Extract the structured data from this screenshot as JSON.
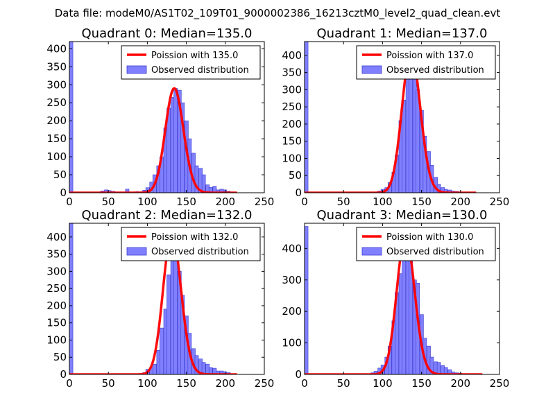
{
  "figure_title": "Data file: modeM0/AS1T02_109T01_9000002386_16213cztM0_level2_quad_clean.evt",
  "colors": {
    "observed": "#8080ff",
    "observed_edge": "#3a3ad0",
    "poisson": "#ff0000",
    "axes": "#000000"
  },
  "legend_labels": {
    "poisson_prefix": "Poission with",
    "observed": "Observed distribution"
  },
  "chart_data": [
    {
      "type": "bar",
      "title": "Quadrant 0: Median=135.0",
      "median": 135.0,
      "poisson_label": "Poission with 135.0",
      "xlim": [
        0,
        250
      ],
      "ylim": [
        0,
        420
      ],
      "xticks": [
        0,
        50,
        100,
        150,
        200,
        250
      ],
      "yticks": [
        0,
        50,
        100,
        150,
        200,
        250,
        300,
        350,
        400
      ],
      "bin_width": 4.5,
      "bins": [
        [
          0,
          420
        ],
        [
          40,
          5
        ],
        [
          45,
          8
        ],
        [
          49,
          6
        ],
        [
          54,
          4
        ],
        [
          58,
          2
        ],
        [
          72,
          10
        ],
        [
          85,
          3
        ],
        [
          94,
          7
        ],
        [
          98,
          14
        ],
        [
          103,
          30
        ],
        [
          107,
          50
        ],
        [
          112,
          75
        ],
        [
          116,
          100
        ],
        [
          121,
          180
        ],
        [
          125,
          235
        ],
        [
          130,
          265
        ],
        [
          134,
          290
        ],
        [
          139,
          285
        ],
        [
          143,
          250
        ],
        [
          148,
          200
        ],
        [
          152,
          150
        ],
        [
          157,
          110
        ],
        [
          161,
          75
        ],
        [
          166,
          68
        ],
        [
          170,
          50
        ],
        [
          175,
          22
        ],
        [
          179,
          15
        ],
        [
          184,
          18
        ],
        [
          188,
          8
        ],
        [
          193,
          10
        ],
        [
          197,
          8
        ],
        [
          202,
          4
        ]
      ],
      "poisson_range": [
        0,
        215
      ]
    },
    {
      "type": "bar",
      "title": "Quadrant 1: Median=137.0",
      "median": 137.0,
      "poisson_label": "Poission with 137.0",
      "xlim": [
        0,
        250
      ],
      "ylim": [
        0,
        440
      ],
      "xticks": [
        0,
        50,
        100,
        150,
        200,
        250
      ],
      "yticks": [
        0,
        50,
        100,
        150,
        200,
        250,
        300,
        350,
        400
      ],
      "bin_width": 4.5,
      "bins": [
        [
          0,
          440
        ],
        [
          94,
          5
        ],
        [
          98,
          10
        ],
        [
          103,
          15
        ],
        [
          107,
          30
        ],
        [
          112,
          60
        ],
        [
          116,
          110
        ],
        [
          121,
          210
        ],
        [
          125,
          270
        ],
        [
          130,
          340
        ],
        [
          134,
          410
        ],
        [
          139,
          360
        ],
        [
          143,
          300
        ],
        [
          148,
          240
        ],
        [
          152,
          165
        ],
        [
          157,
          120
        ],
        [
          161,
          80
        ],
        [
          166,
          45
        ],
        [
          170,
          25
        ],
        [
          175,
          15
        ],
        [
          179,
          10
        ],
        [
          184,
          8
        ],
        [
          188,
          5
        ],
        [
          193,
          4
        ]
      ],
      "poisson_range": [
        0,
        220
      ]
    },
    {
      "type": "bar",
      "title": "Quadrant 2: Median=132.0",
      "median": 132.0,
      "poisson_label": "Poission with 132.0",
      "xlim": [
        0,
        250
      ],
      "ylim": [
        0,
        440
      ],
      "xticks": [
        0,
        50,
        100,
        150,
        200,
        250
      ],
      "yticks": [
        0,
        50,
        100,
        150,
        200,
        250,
        300,
        350,
        400
      ],
      "bin_width": 4.5,
      "bins": [
        [
          0,
          440
        ],
        [
          94,
          5
        ],
        [
          98,
          15
        ],
        [
          103,
          20
        ],
        [
          107,
          30
        ],
        [
          112,
          70
        ],
        [
          116,
          135
        ],
        [
          121,
          190
        ],
        [
          125,
          290
        ],
        [
          130,
          360
        ],
        [
          134,
          410
        ],
        [
          139,
          300
        ],
        [
          143,
          230
        ],
        [
          148,
          170
        ],
        [
          152,
          120
        ],
        [
          157,
          75
        ],
        [
          161,
          55
        ],
        [
          166,
          45
        ],
        [
          170,
          35
        ],
        [
          175,
          30
        ],
        [
          179,
          20
        ],
        [
          184,
          18
        ],
        [
          188,
          10
        ],
        [
          193,
          10
        ],
        [
          197,
          8
        ],
        [
          202,
          5
        ]
      ],
      "poisson_range": [
        0,
        215
      ]
    },
    {
      "type": "bar",
      "title": "Quadrant 3: Median=130.0",
      "median": 130.0,
      "poisson_label": "Poission with 130.0",
      "xlim": [
        0,
        250
      ],
      "ylim": [
        0,
        480
      ],
      "xticks": [
        0,
        50,
        100,
        150,
        200,
        250
      ],
      "yticks": [
        0,
        100,
        200,
        300,
        400
      ],
      "bin_width": 4.5,
      "bins": [
        [
          0,
          470
        ],
        [
          85,
          5
        ],
        [
          89,
          10
        ],
        [
          94,
          20
        ],
        [
          98,
          30
        ],
        [
          103,
          55
        ],
        [
          107,
          90
        ],
        [
          112,
          170
        ],
        [
          116,
          260
        ],
        [
          121,
          320
        ],
        [
          125,
          390
        ],
        [
          130,
          440
        ],
        [
          134,
          360
        ],
        [
          139,
          300
        ],
        [
          143,
          290
        ],
        [
          148,
          190
        ],
        [
          152,
          115
        ],
        [
          157,
          90
        ],
        [
          161,
          55
        ],
        [
          166,
          40
        ],
        [
          170,
          38
        ],
        [
          175,
          28
        ],
        [
          179,
          22
        ],
        [
          184,
          15
        ],
        [
          188,
          8
        ],
        [
          193,
          5
        ],
        [
          197,
          4
        ]
      ],
      "poisson_range": [
        0,
        228
      ]
    }
  ]
}
